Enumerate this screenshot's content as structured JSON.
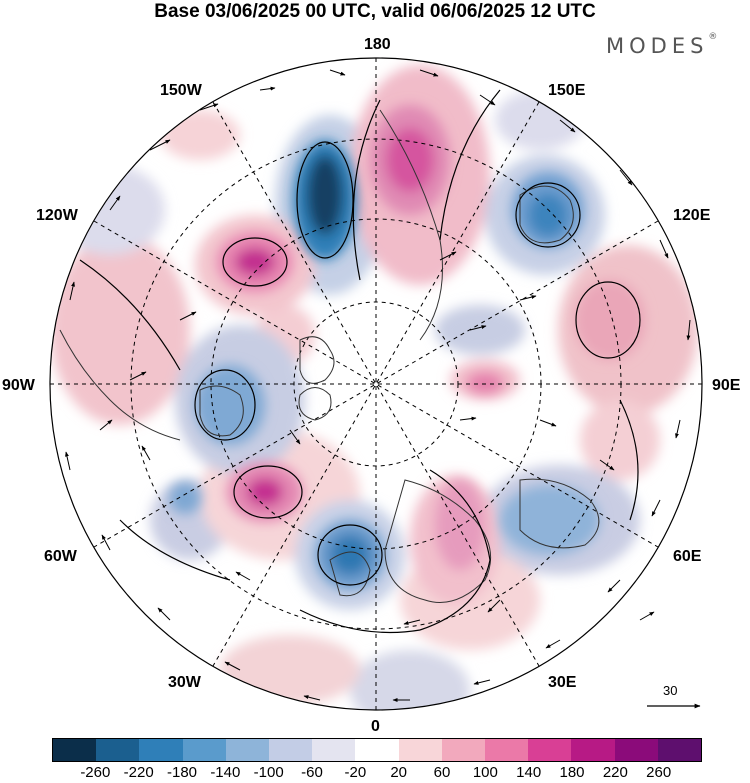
{
  "header": {
    "title": "Base 03/06/2025 00 UTC, valid 06/06/2025 12 UTC",
    "brand": "MODES",
    "brand_mark": "®"
  },
  "map": {
    "longitude_labels": {
      "top": "180",
      "top_left": "150W",
      "top_right": "150E",
      "upper_left": "120W",
      "upper_right": "120E",
      "left": "90W",
      "right": "90E",
      "lower_left": "60W",
      "lower_right": "60E",
      "bottom_left": "30W",
      "bottom_right": "30E",
      "bottom": "0"
    },
    "wind_reference_value": "30"
  },
  "colorbar": {
    "ticks": [
      "-260",
      "-220",
      "-180",
      "-140",
      "-100",
      "-60",
      "-20",
      "20",
      "60",
      "100",
      "140",
      "180",
      "220",
      "260"
    ],
    "colors": [
      "#0b2e4a",
      "#1b5f8f",
      "#2f7fb8",
      "#5a9bcc",
      "#8eb4d9",
      "#c3cde6",
      "#e4e4f0",
      "#ffffff",
      "#f8d6d9",
      "#f2a9bd",
      "#eb79a8",
      "#d93f95",
      "#b71a85",
      "#8b0b7a",
      "#5e0f6e"
    ]
  }
}
